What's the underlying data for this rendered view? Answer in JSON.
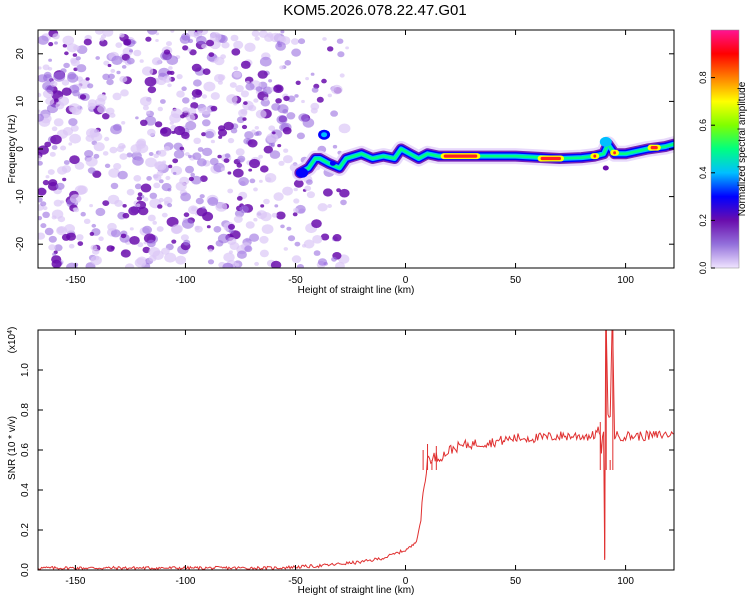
{
  "title": "KOM5.2026.078.22.47.G01",
  "chart_data": [
    {
      "type": "heatmap",
      "name": "spectrogram",
      "xlabel": "Height of straight line (km)",
      "ylabel": "Frequency (Hz)",
      "xlim": [
        -167,
        122
      ],
      "ylim": [
        -25,
        25
      ],
      "xticks": [
        -150,
        -100,
        -50,
        0,
        50,
        100
      ],
      "yticks": [
        -20,
        -10,
        0,
        10,
        20
      ],
      "noise_region_km": [
        -167,
        -25
      ],
      "signal_centerline": [
        [
          -48,
          -5
        ],
        [
          -44,
          -4
        ],
        [
          -41,
          -2
        ],
        [
          -39,
          -2
        ],
        [
          -35,
          -3
        ],
        [
          -30,
          -4
        ],
        [
          -27,
          -2
        ],
        [
          -20,
          -1
        ],
        [
          -15,
          -2
        ],
        [
          -10,
          -1.5
        ],
        [
          -5,
          -2
        ],
        [
          -2,
          0
        ],
        [
          2,
          -1
        ],
        [
          6,
          -2
        ],
        [
          10,
          -1
        ],
        [
          15,
          -1.5
        ],
        [
          30,
          -1.5
        ],
        [
          50,
          -1.5
        ],
        [
          70,
          -2
        ],
        [
          80,
          -1.8
        ],
        [
          86,
          -1.5
        ],
        [
          90,
          -1
        ],
        [
          92,
          1
        ],
        [
          95,
          -1
        ],
        [
          100,
          -1
        ],
        [
          110,
          0
        ],
        [
          118,
          0.5
        ],
        [
          122,
          1
        ]
      ],
      "signal_hotspots": [
        [
          16,
          34,
          -1.5
        ],
        [
          60,
          72,
          -2
        ],
        [
          84,
          88,
          -1.5
        ],
        [
          110,
          116,
          0.3
        ],
        [
          93,
          97,
          -0.8
        ]
      ],
      "colorbar": {
        "label": "Normalized spectral amplitude",
        "range": [
          0,
          1
        ],
        "ticks": [
          "0.0",
          "0.2",
          "0.4",
          "0.6",
          "0.8"
        ],
        "colors": [
          "#f0e4ff",
          "#9370db",
          "#6a0dad",
          "#0000ff",
          "#00bfff",
          "#00ff80",
          "#80ff00",
          "#ffff00",
          "#ff8000",
          "#ff0000",
          "#ff1493"
        ]
      }
    },
    {
      "type": "line",
      "name": "snr",
      "xlabel": "Height of straight line (km)",
      "ylabel": "SNR (10 * v/v)",
      "scale_label": "(x10",
      "scale_exp": "4",
      "scale_close": ")",
      "xlim": [
        -167,
        122
      ],
      "ylim": [
        0,
        1.2
      ],
      "xticks": [
        -150,
        -100,
        -50,
        0,
        50,
        100
      ],
      "yticks": [
        "0.0",
        "0.2",
        "0.4",
        "0.6",
        "0.8",
        "1.0"
      ],
      "color": "#e03030",
      "x": [
        -167,
        -100,
        -60,
        -40,
        -30,
        -20,
        -10,
        -5,
        0,
        3,
        5,
        7,
        8,
        9,
        10,
        11,
        12,
        13,
        15,
        18,
        20,
        25,
        30,
        40,
        50,
        60,
        70,
        80,
        85,
        88,
        89,
        90,
        90.5,
        91,
        92,
        93,
        94,
        95,
        100,
        110,
        122
      ],
      "y": [
        0.01,
        0.01,
        0.01,
        0.02,
        0.03,
        0.04,
        0.06,
        0.08,
        0.1,
        0.12,
        0.15,
        0.25,
        0.38,
        0.45,
        0.55,
        0.58,
        0.53,
        0.57,
        0.56,
        0.58,
        0.6,
        0.62,
        0.63,
        0.64,
        0.66,
        0.66,
        0.67,
        0.67,
        0.67,
        0.7,
        0.6,
        0.7,
        0.05,
        1.3,
        0.8,
        0.75,
        1.3,
        0.67,
        0.67,
        0.67,
        0.68
      ],
      "spikes": [
        [
          8,
          0.6
        ],
        [
          10,
          0.63
        ],
        [
          12,
          0.55
        ],
        [
          14,
          0.62
        ],
        [
          90.5,
          0.05
        ],
        [
          91.2,
          1.3
        ],
        [
          93,
          0.55
        ],
        [
          94.2,
          1.3
        ],
        [
          88.5,
          0.74
        ],
        [
          89.5,
          0.5
        ]
      ]
    }
  ]
}
